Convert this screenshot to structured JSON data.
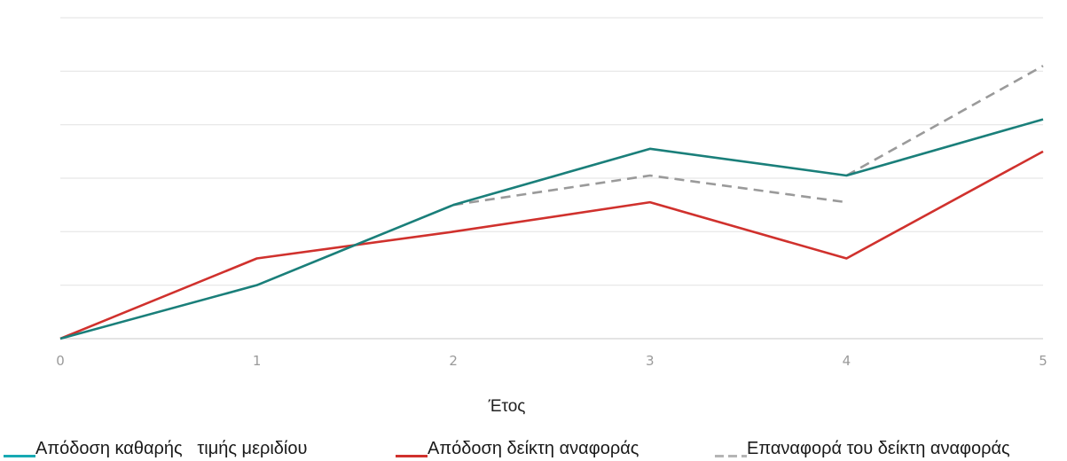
{
  "chart_data": {
    "type": "line",
    "title": "",
    "xlabel": "Έτος",
    "ylabel": "",
    "x": [
      0,
      1,
      2,
      3,
      4,
      5
    ],
    "x_tick_labels": [
      "0",
      "1",
      "2",
      "3",
      "4",
      "5"
    ],
    "ylim": [
      0,
      6
    ],
    "y_gridlines": [
      0,
      1,
      2,
      3,
      4,
      5,
      6
    ],
    "y_tick_labels_shown": false,
    "grid": true,
    "legend_position": "bottom",
    "series": [
      {
        "name": "Απόδοση καθαρής   τιμής μεριδίου",
        "color": "#1a7f7a",
        "style": "solid",
        "points": [
          [
            0,
            0
          ],
          [
            1,
            1
          ],
          [
            2,
            2.5
          ],
          [
            3,
            3.55
          ],
          [
            4,
            3.05
          ],
          [
            5,
            4.1
          ]
        ]
      },
      {
        "name": "Απόδοση δείκτη αναφοράς",
        "color": "#d0312d",
        "style": "solid",
        "points": [
          [
            0,
            0
          ],
          [
            1,
            1.5
          ],
          [
            2,
            2.0
          ],
          [
            3,
            2.55
          ],
          [
            4,
            1.5
          ],
          [
            5,
            3.5
          ]
        ]
      },
      {
        "name": "Επαναφορά του δείκτη αναφοράς",
        "color": "#9a9a9a",
        "style": "dashed",
        "segments": [
          [
            [
              2,
              2.5
            ],
            [
              3,
              3.05
            ],
            [
              4,
              2.55
            ]
          ],
          [
            [
              4,
              3.05
            ],
            [
              5,
              5.1
            ]
          ]
        ]
      }
    ]
  }
}
